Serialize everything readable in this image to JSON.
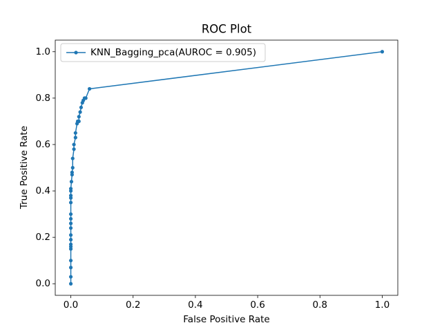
{
  "chart_data": {
    "type": "line",
    "title": "ROC Plot",
    "x_label": "False Positive Rate",
    "y_label": "True Positive Rate",
    "x": [
      0,
      0,
      0,
      0,
      0,
      0,
      0,
      0,
      0,
      0,
      0,
      0,
      0,
      0,
      0,
      0,
      0,
      0,
      0.002,
      0.004,
      0.004,
      0.006,
      0.006,
      0.01,
      0.01,
      0.015,
      0.015,
      0.02,
      0.022,
      0.026,
      0.026,
      0.03,
      0.033,
      0.037,
      0.04,
      0.044,
      0.048,
      0.06,
      1
    ],
    "series": [
      {
        "name": "KNN_Bagging_pca(AUROC = 0.905)",
        "color": "#1f77b4",
        "values": [
          0,
          0.03,
          0.07,
          0.1,
          0.15,
          0.16,
          0.17,
          0.19,
          0.21,
          0.24,
          0.26,
          0.28,
          0.3,
          0.35,
          0.37,
          0.38,
          0.4,
          0.41,
          0.44,
          0.47,
          0.48,
          0.5,
          0.54,
          0.58,
          0.6,
          0.63,
          0.65,
          0.69,
          0.7,
          0.7,
          0.72,
          0.74,
          0.76,
          0.78,
          0.79,
          0.8,
          0.8,
          0.84,
          1
        ]
      }
    ],
    "xlim": [
      -0.05,
      1.05
    ],
    "ylim": [
      -0.05,
      1.05
    ],
    "xticks": [
      {
        "value": 0,
        "label": "0.0"
      },
      0.2,
      0.4,
      0.6,
      0.8,
      {
        "value": 1,
        "label": "1.0"
      }
    ],
    "yticks": [
      {
        "value": 0,
        "label": "0.0"
      },
      0.2,
      0.4,
      0.6,
      0.8,
      {
        "value": 1,
        "label": "1.0"
      }
    ],
    "grid": false,
    "markers": true,
    "legend": "upper left"
  }
}
